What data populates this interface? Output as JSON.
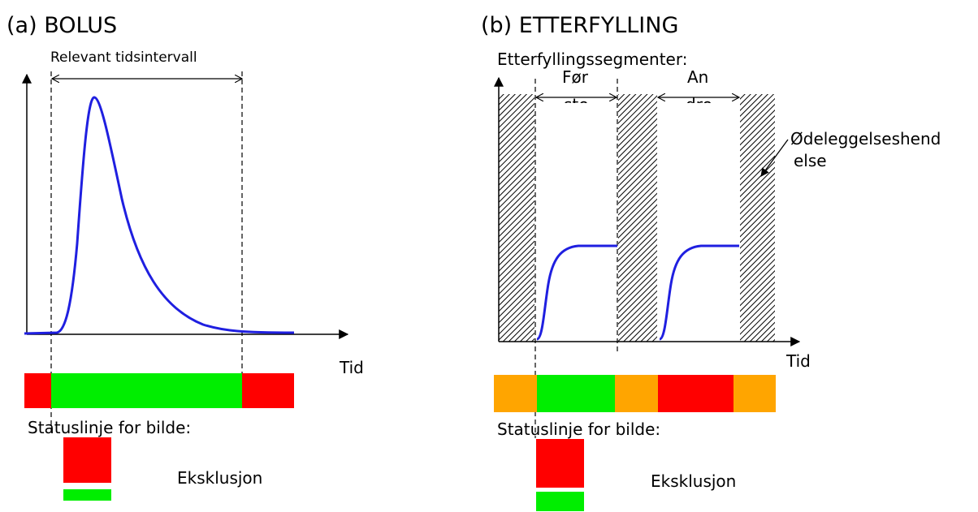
{
  "panel_a": {
    "title": "(a) BOLUS",
    "interval_label": "Relevant tidsintervall",
    "x_label": "Tid",
    "status_label": "Statuslinje for bilde:",
    "exclusion_label": "Eksklusjon"
  },
  "panel_b": {
    "title": "(b) ETTERFYLLING",
    "segments_label": "Etterfyllingssegmenter:",
    "first_line1": "Før",
    "first_line2": "ste",
    "second_line1": "An",
    "second_line2": "dre",
    "destruction_line1": "Ødeleggelseshend",
    "destruction_line2": "else",
    "x_label": "Tid",
    "status_label": "Statuslinje for bilde:",
    "exclusion_label": "Eksklusjon"
  },
  "colors": {
    "curve": "#1f1fe0",
    "included": "#00ee00",
    "excluded": "#ff0000",
    "partial": "#ffa500"
  }
}
